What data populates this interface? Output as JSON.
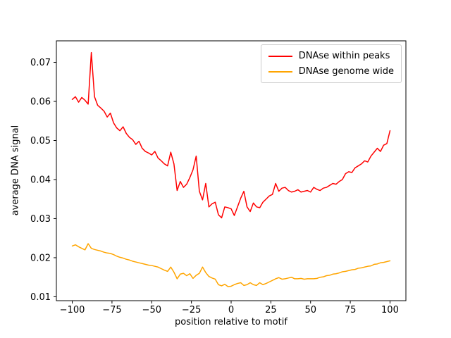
{
  "figure": {
    "background": "#ffffff"
  },
  "chart_data": {
    "type": "line",
    "title": "",
    "xlabel": "position relative to motif",
    "ylabel": "average DNA signal",
    "xlim": [
      -110,
      110
    ],
    "ylim": [
      0.009,
      0.0755
    ],
    "grid": false,
    "frame_color": "#000000",
    "xticks": {
      "values": [
        -100,
        -75,
        -50,
        -25,
        0,
        25,
        50,
        75,
        100
      ],
      "labels": [
        "−100",
        "−75",
        "−50",
        "−25",
        "0",
        "25",
        "50",
        "75",
        "100"
      ]
    },
    "yticks": {
      "values": [
        0.01,
        0.02,
        0.03,
        0.04,
        0.05,
        0.06,
        0.07
      ],
      "labels": [
        "0.01",
        "0.02",
        "0.03",
        "0.04",
        "0.05",
        "0.06",
        "0.07"
      ]
    },
    "legend": {
      "position": "upper right",
      "entries": [
        {
          "label": "DNAse within peaks",
          "color": "#ff0000"
        },
        {
          "label": "DNAse genome wide",
          "color": "#ffa500"
        }
      ]
    },
    "x": [
      -100,
      -98,
      -96,
      -94,
      -92,
      -90,
      -88,
      -86,
      -84,
      -82,
      -80,
      -78,
      -76,
      -74,
      -72,
      -70,
      -68,
      -66,
      -64,
      -62,
      -60,
      -58,
      -56,
      -54,
      -52,
      -50,
      -48,
      -46,
      -44,
      -42,
      -40,
      -38,
      -36,
      -34,
      -32,
      -30,
      -28,
      -26,
      -24,
      -22,
      -20,
      -18,
      -16,
      -14,
      -12,
      -10,
      -8,
      -6,
      -4,
      -2,
      0,
      2,
      4,
      6,
      8,
      10,
      12,
      14,
      16,
      18,
      20,
      22,
      24,
      26,
      28,
      30,
      32,
      34,
      36,
      38,
      40,
      42,
      44,
      46,
      48,
      50,
      52,
      54,
      56,
      58,
      60,
      62,
      64,
      66,
      68,
      70,
      72,
      74,
      76,
      78,
      80,
      82,
      84,
      86,
      88,
      90,
      92,
      94,
      96,
      98,
      100
    ],
    "series": [
      {
        "name": "DNAse within peaks",
        "color": "#ff0000",
        "values": [
          0.0605,
          0.0612,
          0.0598,
          0.061,
          0.0603,
          0.0593,
          0.0725,
          0.0612,
          0.059,
          0.0583,
          0.0575,
          0.056,
          0.057,
          0.0545,
          0.0532,
          0.0525,
          0.0535,
          0.0518,
          0.0508,
          0.0502,
          0.049,
          0.0498,
          0.048,
          0.0472,
          0.0468,
          0.0463,
          0.0472,
          0.0455,
          0.0448,
          0.044,
          0.0435,
          0.047,
          0.044,
          0.0372,
          0.0395,
          0.038,
          0.0388,
          0.0405,
          0.0425,
          0.046,
          0.037,
          0.0348,
          0.039,
          0.033,
          0.0338,
          0.0342,
          0.031,
          0.0302,
          0.033,
          0.0328,
          0.0325,
          0.0308,
          0.033,
          0.0352,
          0.037,
          0.033,
          0.0318,
          0.034,
          0.033,
          0.0328,
          0.0342,
          0.035,
          0.0358,
          0.0362,
          0.039,
          0.037,
          0.0378,
          0.038,
          0.0372,
          0.0368,
          0.037,
          0.0374,
          0.0368,
          0.037,
          0.0372,
          0.0368,
          0.038,
          0.0375,
          0.0372,
          0.0378,
          0.038,
          0.0385,
          0.039,
          0.0388,
          0.0395,
          0.04,
          0.0415,
          0.042,
          0.0418,
          0.043,
          0.0435,
          0.044,
          0.0448,
          0.0445,
          0.046,
          0.047,
          0.048,
          0.0472,
          0.0488,
          0.0492,
          0.0525
        ]
      },
      {
        "name": "DNAse genome wide",
        "color": "#ffa500",
        "values": [
          0.023,
          0.0233,
          0.0228,
          0.0224,
          0.022,
          0.0236,
          0.0224,
          0.0221,
          0.0219,
          0.0217,
          0.0214,
          0.0212,
          0.0211,
          0.0208,
          0.0204,
          0.0201,
          0.0199,
          0.0196,
          0.0194,
          0.0191,
          0.0189,
          0.0187,
          0.0185,
          0.0183,
          0.0181,
          0.018,
          0.0178,
          0.0176,
          0.0172,
          0.0168,
          0.0165,
          0.0176,
          0.0163,
          0.0146,
          0.0158,
          0.016,
          0.0154,
          0.0159,
          0.0147,
          0.0155,
          0.016,
          0.0176,
          0.0162,
          0.0152,
          0.0148,
          0.0145,
          0.0131,
          0.0128,
          0.0132,
          0.0126,
          0.0127,
          0.0131,
          0.0134,
          0.0136,
          0.0129,
          0.0131,
          0.0136,
          0.0131,
          0.0129,
          0.0136,
          0.0131,
          0.0134,
          0.0138,
          0.0142,
          0.0146,
          0.0149,
          0.0145,
          0.0146,
          0.0148,
          0.015,
          0.0146,
          0.0146,
          0.0147,
          0.0145,
          0.0146,
          0.0146,
          0.0146,
          0.0147,
          0.015,
          0.0151,
          0.0154,
          0.0155,
          0.0158,
          0.0159,
          0.0161,
          0.0164,
          0.0165,
          0.0167,
          0.0169,
          0.017,
          0.0173,
          0.0174,
          0.0176,
          0.0178,
          0.0179,
          0.0183,
          0.0184,
          0.0187,
          0.0188,
          0.019,
          0.0192
        ]
      }
    ]
  }
}
